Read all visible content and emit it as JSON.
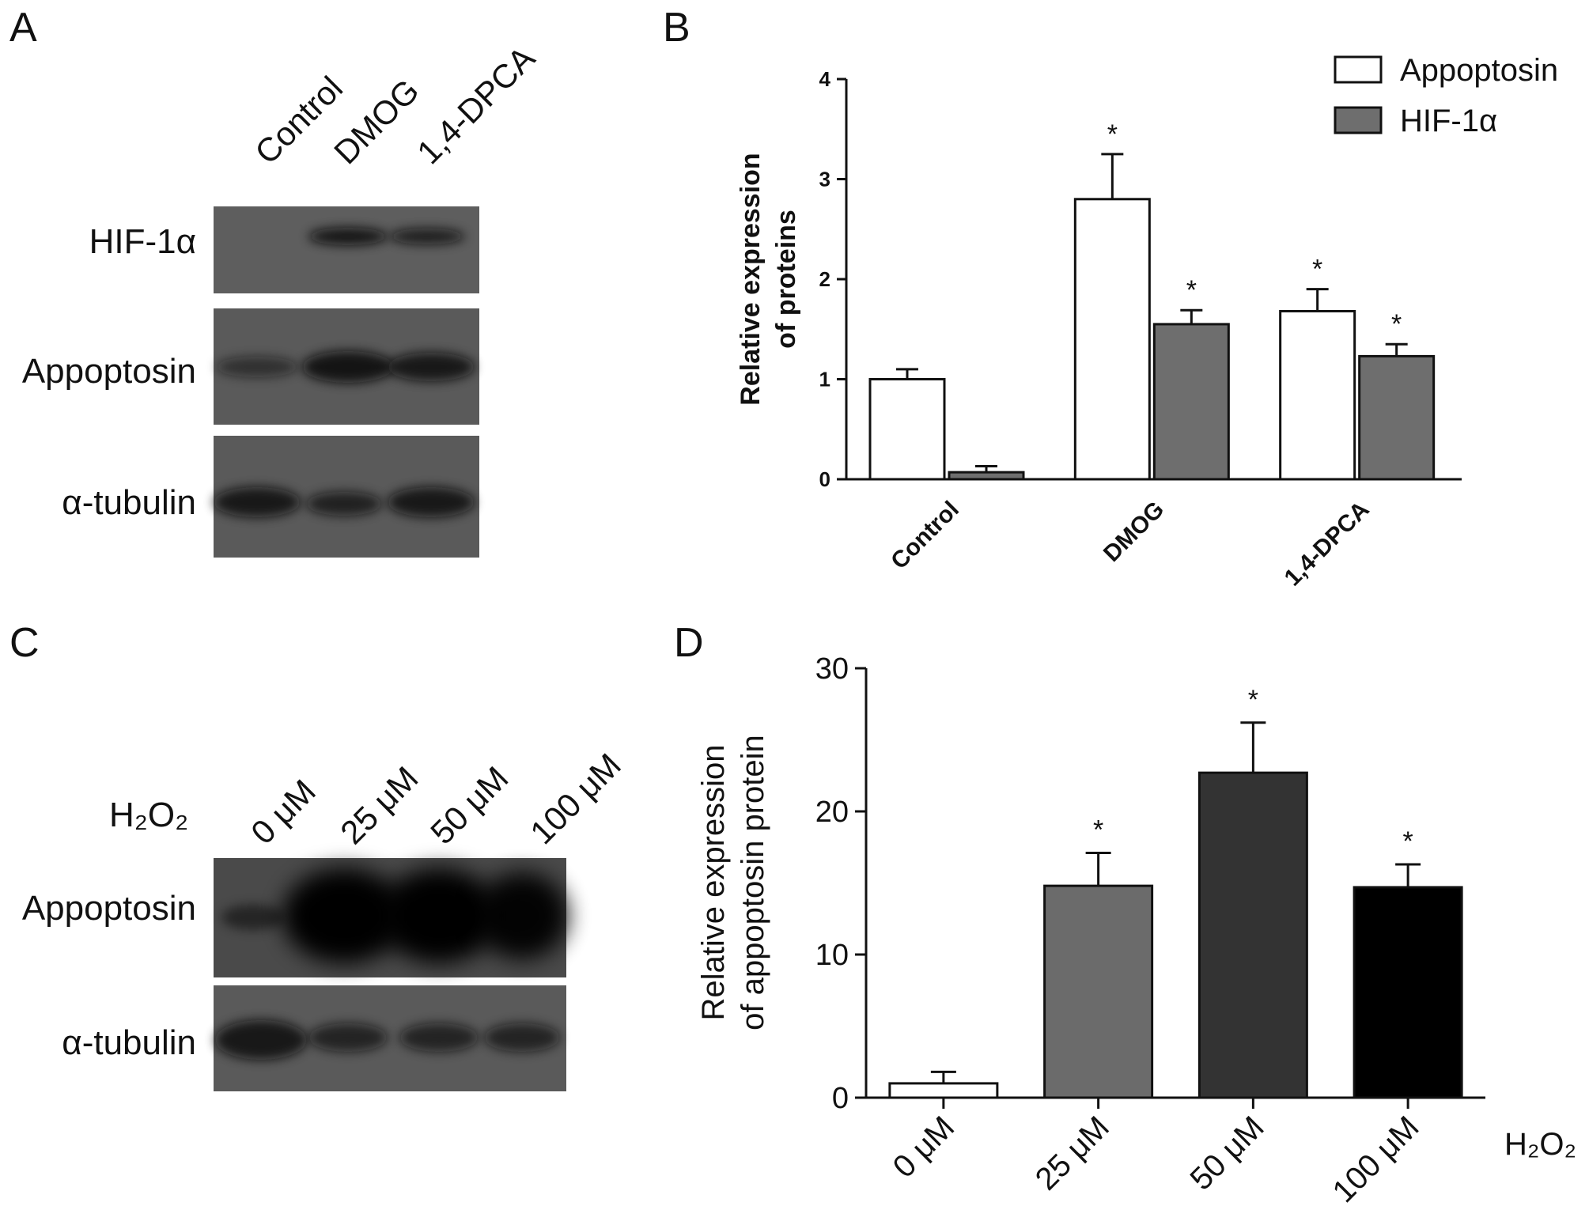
{
  "panels": {
    "a": {
      "letter": "A",
      "lanes": [
        "Control",
        "DMOG",
        "1,4-DPCA"
      ],
      "rows": [
        {
          "label": "HIF-1α",
          "intensity": [
            0.0,
            0.9,
            0.8
          ]
        },
        {
          "label": "Appoptosin",
          "intensity": [
            0.55,
            0.9,
            0.85
          ]
        },
        {
          "label": "α-tubulin",
          "intensity": [
            0.85,
            0.75,
            0.85
          ]
        }
      ]
    },
    "b": {
      "letter": "B"
    },
    "c": {
      "letter": "C",
      "treatment_label": "H₂O₂",
      "lanes": [
        "0 μM",
        "25 μM",
        "50 μM",
        "100 μM"
      ],
      "rows": [
        {
          "label": "Appoptosin",
          "intensity": [
            0.5,
            1.0,
            1.0,
            0.95
          ]
        },
        {
          "label": "α-tubulin",
          "intensity": [
            0.85,
            0.7,
            0.7,
            0.7
          ]
        }
      ]
    },
    "d": {
      "letter": "D"
    }
  },
  "chart_data": [
    {
      "type": "bar",
      "panel": "B",
      "categories": [
        "Control",
        "DMOG",
        "1,4-DPCA"
      ],
      "series": [
        {
          "name": "Appoptosin",
          "values": [
            1.0,
            2.8,
            1.68
          ],
          "errors": [
            0.1,
            0.45,
            0.22
          ],
          "significant": [
            false,
            true,
            true
          ],
          "color": "#ffffff"
        },
        {
          "name": "HIF-1α",
          "values": [
            0.07,
            1.55,
            1.23
          ],
          "errors": [
            0.06,
            0.14,
            0.12
          ],
          "significant": [
            false,
            true,
            true
          ],
          "color": "#6e6e6e"
        }
      ],
      "ylabel": [
        "Relative expression",
        "of proteins"
      ],
      "ylim": [
        0,
        4
      ],
      "yticks": [
        0,
        1,
        2,
        3,
        4
      ],
      "legend": "top-right",
      "grid": false,
      "significance_marker": "*"
    },
    {
      "type": "bar",
      "panel": "D",
      "categories": [
        "0 μM",
        "25 μM",
        "50 μM",
        "100 μM"
      ],
      "values": [
        1.0,
        14.8,
        22.7,
        14.7
      ],
      "errors": [
        0.8,
        2.3,
        3.5,
        1.6
      ],
      "significant": [
        false,
        true,
        true,
        true
      ],
      "colors": [
        "#ffffff",
        "#6b6b6b",
        "#333333",
        "#000000"
      ],
      "ylabel": [
        "Relative expression",
        "of appoptosin protein"
      ],
      "xlabel": "H₂O₂",
      "ylim": [
        0,
        30
      ],
      "yticks": [
        0,
        10,
        20,
        30
      ],
      "grid": false,
      "significance_marker": "*"
    }
  ]
}
